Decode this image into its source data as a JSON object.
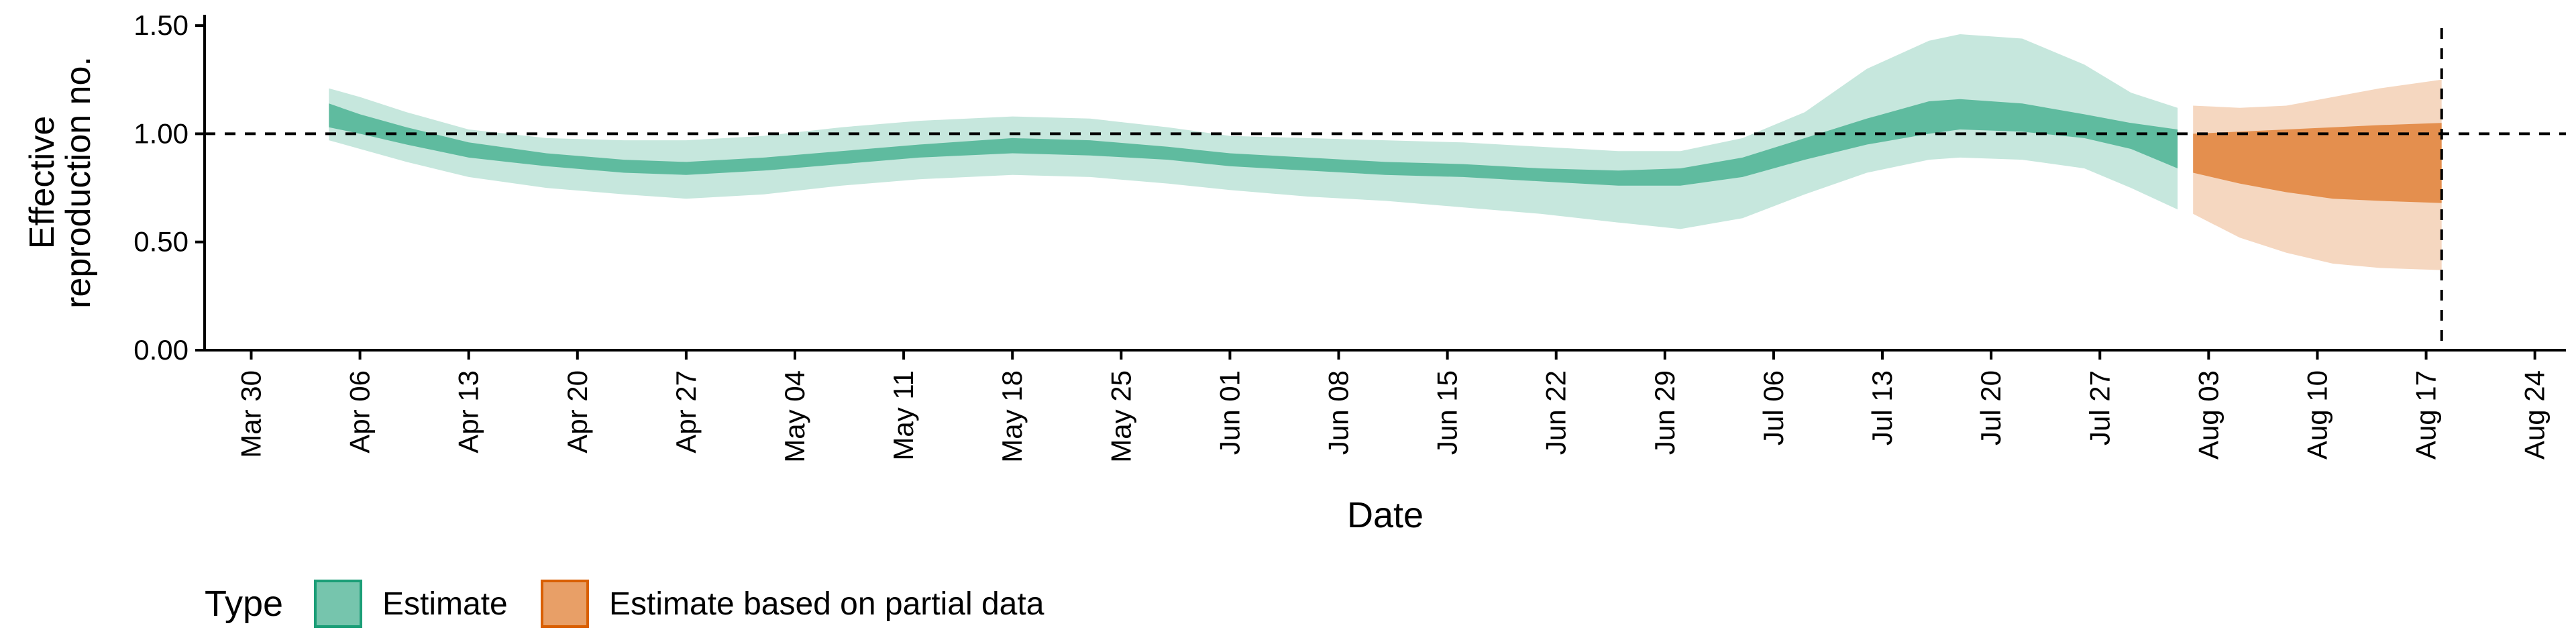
{
  "chart_data": {
    "type": "area",
    "xlabel": "Date",
    "ylabel_lines": [
      "Effective",
      "reproduction no."
    ],
    "x_domain": [
      "2020-03-27",
      "2020-08-26"
    ],
    "ylim": [
      0,
      1.55
    ],
    "y_ticks": [
      0.0,
      0.5,
      1.0,
      1.5
    ],
    "y_tick_labels": [
      "0.00",
      "0.50",
      "1.00",
      "1.50"
    ],
    "x_ticks": [
      "2020-03-30",
      "2020-04-06",
      "2020-04-13",
      "2020-04-20",
      "2020-04-27",
      "2020-05-04",
      "2020-05-11",
      "2020-05-18",
      "2020-05-25",
      "2020-06-01",
      "2020-06-08",
      "2020-06-15",
      "2020-06-22",
      "2020-06-29",
      "2020-07-06",
      "2020-07-13",
      "2020-07-20",
      "2020-07-27",
      "2020-08-03",
      "2020-08-10",
      "2020-08-17",
      "2020-08-24"
    ],
    "x_tick_labels": [
      "Mar 30",
      "Apr 06",
      "Apr 13",
      "Apr 20",
      "Apr 27",
      "May 04",
      "May 11",
      "May 18",
      "May 25",
      "Jun 01",
      "Jun 08",
      "Jun 15",
      "Jun 22",
      "Jun 29",
      "Jul 06",
      "Jul 13",
      "Jul 20",
      "Jul 27",
      "Aug 03",
      "Aug 10",
      "Aug 17",
      "Aug 24"
    ],
    "reference_line_y": 1.0,
    "reference_line_x": "2020-08-18",
    "grid": false,
    "legend_position": "bottom-left",
    "legend_title": "Type",
    "series": [
      {
        "name": "Estimate",
        "color": "#1b9e77",
        "x": [
          "2020-04-04",
          "2020-04-06",
          "2020-04-09",
          "2020-04-13",
          "2020-04-18",
          "2020-04-23",
          "2020-04-27",
          "2020-05-02",
          "2020-05-07",
          "2020-05-12",
          "2020-05-18",
          "2020-05-23",
          "2020-05-28",
          "2020-06-01",
          "2020-06-06",
          "2020-06-11",
          "2020-06-16",
          "2020-06-21",
          "2020-06-26",
          "2020-06-30",
          "2020-07-04",
          "2020-07-08",
          "2020-07-12",
          "2020-07-16",
          "2020-07-18",
          "2020-07-22",
          "2020-07-26",
          "2020-07-29",
          "2020-08-01"
        ],
        "lower90": [
          0.97,
          0.93,
          0.87,
          0.8,
          0.75,
          0.72,
          0.7,
          0.72,
          0.76,
          0.79,
          0.81,
          0.8,
          0.77,
          0.74,
          0.71,
          0.69,
          0.66,
          0.63,
          0.59,
          0.56,
          0.61,
          0.72,
          0.82,
          0.88,
          0.89,
          0.88,
          0.84,
          0.75,
          0.65
        ],
        "upper90": [
          1.21,
          1.17,
          1.1,
          1.02,
          0.98,
          0.97,
          0.97,
          0.99,
          1.03,
          1.06,
          1.08,
          1.07,
          1.03,
          0.99,
          0.98,
          0.97,
          0.96,
          0.94,
          0.92,
          0.92,
          0.98,
          1.1,
          1.3,
          1.43,
          1.46,
          1.44,
          1.32,
          1.19,
          1.12
        ],
        "lower50": [
          1.03,
          1.0,
          0.95,
          0.89,
          0.85,
          0.82,
          0.81,
          0.83,
          0.86,
          0.89,
          0.91,
          0.9,
          0.88,
          0.85,
          0.83,
          0.81,
          0.8,
          0.78,
          0.76,
          0.76,
          0.8,
          0.88,
          0.95,
          1.0,
          1.02,
          1.01,
          0.98,
          0.93,
          0.84
        ],
        "upper50": [
          1.14,
          1.09,
          1.03,
          0.96,
          0.91,
          0.88,
          0.87,
          0.89,
          0.92,
          0.95,
          0.98,
          0.97,
          0.94,
          0.91,
          0.89,
          0.87,
          0.86,
          0.84,
          0.83,
          0.84,
          0.89,
          0.98,
          1.07,
          1.15,
          1.16,
          1.14,
          1.09,
          1.05,
          1.02
        ]
      },
      {
        "name": "Estimate based on partial data",
        "color": "#d95f02",
        "x": [
          "2020-08-02",
          "2020-08-05",
          "2020-08-08",
          "2020-08-11",
          "2020-08-14",
          "2020-08-18"
        ],
        "lower90": [
          0.63,
          0.52,
          0.45,
          0.4,
          0.38,
          0.37
        ],
        "upper90": [
          1.13,
          1.12,
          1.13,
          1.17,
          1.21,
          1.25
        ],
        "lower50": [
          0.82,
          0.77,
          0.73,
          0.7,
          0.69,
          0.68
        ],
        "upper50": [
          1.0,
          1.01,
          1.02,
          1.03,
          1.04,
          1.05
        ]
      }
    ]
  }
}
